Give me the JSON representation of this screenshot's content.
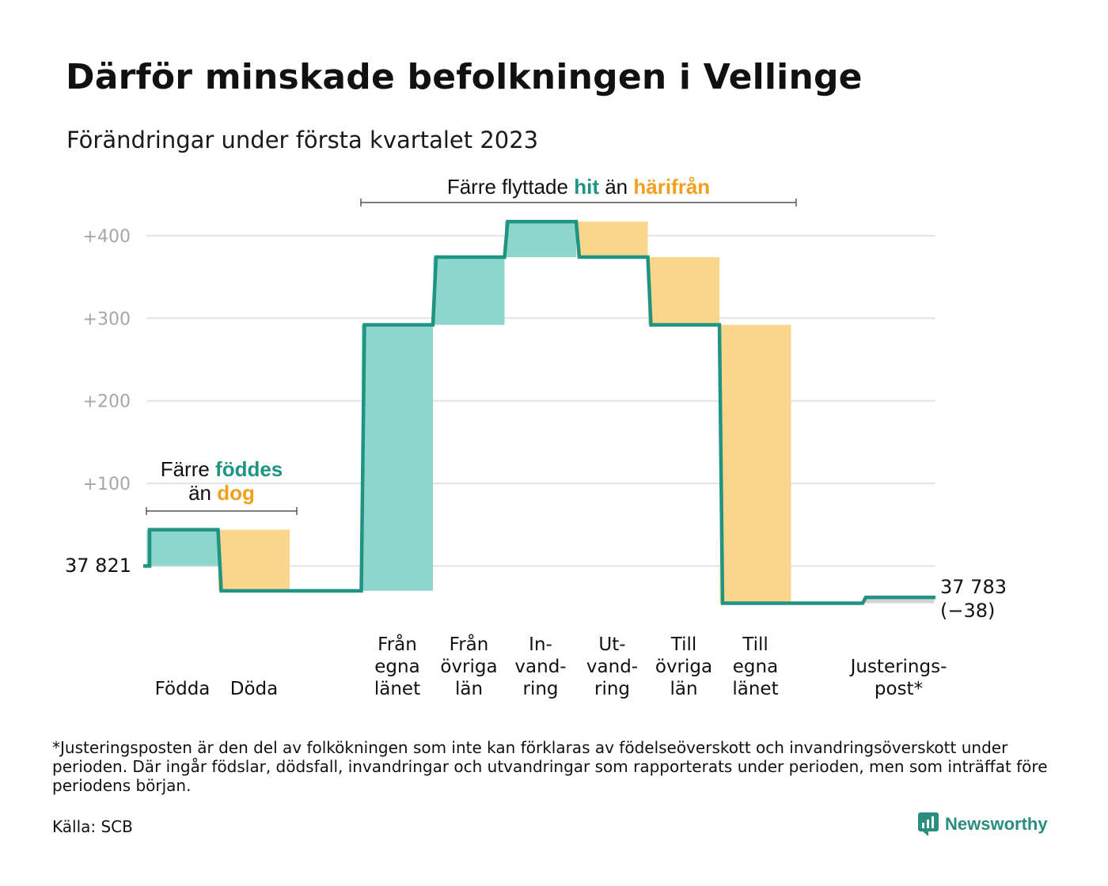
{
  "title": "Därför minskade befolkningen i Vellinge",
  "subtitle": "Förändringar under första kvartalet 2023",
  "annotations": {
    "births_deaths": {
      "prefix": "Färre ",
      "pos": "föddes",
      "line2_prefix": "än ",
      "neg": "dog"
    },
    "migration": {
      "prefix": "Färre flyttade ",
      "pos": "hit",
      "middle": " än ",
      "neg": "härifrån"
    }
  },
  "start_label": "37 821",
  "end_label": {
    "value": "37 783",
    "change": "(−38)"
  },
  "footnote": "*Justeringsposten är den del av folkökningen som inte kan förklaras av födelseöverskott och invandringsöverskott under perioden. Där ingår födslar, dödsfall, invandringar och utvandringar som rapporterats under perioden, men som inträffat före periodens början.",
  "source": "Källa: SCB",
  "brand": "Newsworthy",
  "colors": {
    "positive": "#8ed5cb",
    "negative": "#f9d68c",
    "line": "#1f9483",
    "adjustment": "#d3d3d3",
    "pos_text": "#1f9483",
    "neg_text": "#f29f1b",
    "tick": "#a6a6a6",
    "grid": "#e3e3e3"
  },
  "chart_data": {
    "type": "bar",
    "subtype": "waterfall",
    "baseline": 37821,
    "end_value": 37783,
    "net_change": -38,
    "ylim": [
      -45,
      420
    ],
    "yticks": [
      100,
      200,
      300,
      400
    ],
    "ytick_labels": [
      "+100",
      "+200",
      "+300",
      "+400"
    ],
    "grid": true,
    "steps": [
      {
        "label": [
          "Födda"
        ],
        "value": 44
      },
      {
        "label": [
          "Döda"
        ],
        "value": -74
      },
      {
        "label": [],
        "value": 0
      },
      {
        "label": [
          "Från",
          "egna",
          "länet"
        ],
        "value": 322
      },
      {
        "label": [
          "Från",
          "övriga",
          "län"
        ],
        "value": 82
      },
      {
        "label": [
          "In-",
          "vand-",
          "ring"
        ],
        "value": 43
      },
      {
        "label": [
          "Ut-",
          "vand-",
          "ring"
        ],
        "value": -43
      },
      {
        "label": [
          "Till",
          "övriga",
          "län"
        ],
        "value": -82
      },
      {
        "label": [
          "Till",
          "egna",
          "länet"
        ],
        "value": -337
      },
      {
        "label": [],
        "value": 0
      },
      {
        "label": [
          "Justerings-",
          "post*"
        ],
        "value": 7
      }
    ]
  }
}
